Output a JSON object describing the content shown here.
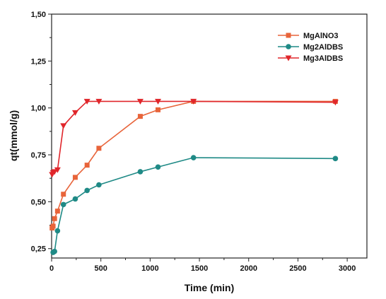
{
  "chart_data": {
    "type": "line",
    "xlabel": "Time (min)",
    "ylabel": "qt(mmol/g)",
    "xlim": [
      0,
      3200
    ],
    "ylim": [
      0.2,
      1.5
    ],
    "xticks": [
      0,
      500,
      1000,
      1500,
      2000,
      2500,
      3000
    ],
    "xtick_labels": [
      "0",
      "500",
      "1000",
      "1500",
      "2000",
      "2500",
      "3000"
    ],
    "yticks": [
      0.25,
      0.5,
      0.75,
      1.0,
      1.25,
      1.5
    ],
    "ytick_labels": [
      "0,25",
      "0,50",
      "0,75",
      "1,00",
      "1,25",
      "1,50"
    ],
    "grid": false,
    "legend_position": "top-right",
    "series": [
      {
        "name": "MgAlNO3",
        "color": "#e8643a",
        "marker": "square",
        "x": [
          5,
          15,
          30,
          60,
          120,
          240,
          360,
          480,
          900,
          1080,
          1440,
          2880
        ],
        "y": [
          0.36,
          0.37,
          0.41,
          0.45,
          0.54,
          0.63,
          0.695,
          0.785,
          0.955,
          0.99,
          1.035,
          1.035
        ]
      },
      {
        "name": "Mg2AlDBS",
        "color": "#1f8a86",
        "marker": "circle",
        "x": [
          15,
          30,
          60,
          120,
          240,
          360,
          480,
          900,
          1080,
          1440,
          2880
        ],
        "y": [
          0.23,
          0.235,
          0.345,
          0.485,
          0.515,
          0.56,
          0.59,
          0.66,
          0.685,
          0.735,
          0.73
        ]
      },
      {
        "name": "Mg3AlDBS",
        "color": "#e0262b",
        "marker": "triangle-down",
        "x": [
          5,
          15,
          30,
          60,
          120,
          240,
          360,
          480,
          900,
          1080,
          1440,
          2880
        ],
        "y": [
          0.645,
          0.655,
          0.66,
          0.67,
          0.905,
          0.975,
          1.035,
          1.035,
          1.035,
          1.035,
          1.035,
          1.03
        ]
      }
    ]
  }
}
